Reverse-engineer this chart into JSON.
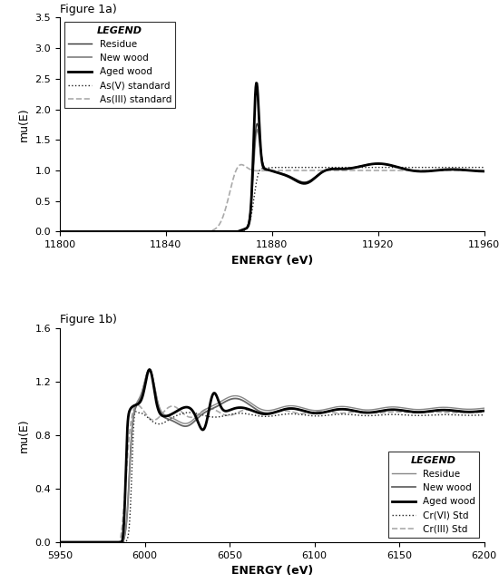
{
  "fig1a": {
    "title": "Figure 1a)",
    "xlabel": "ENERGY (eV)",
    "ylabel": "mu(E)",
    "xlim": [
      11800,
      11960
    ],
    "ylim": [
      0.0,
      3.5
    ],
    "yticks": [
      0.0,
      0.5,
      1.0,
      1.5,
      2.0,
      2.5,
      3.0,
      3.5
    ],
    "xticks": [
      11800,
      11840,
      11880,
      11920,
      11960
    ],
    "legend_title": "LEGEND",
    "legend_entries": [
      "Residue",
      "New wood",
      "Aged wood",
      "As(V) standard",
      "As(III) standard"
    ]
  },
  "fig1b": {
    "title": "Figure 1b)",
    "xlabel": "ENERGY (eV)",
    "ylabel": "mu(E)",
    "xlim": [
      5950,
      6200
    ],
    "ylim": [
      0.0,
      1.6
    ],
    "yticks": [
      0.0,
      0.4,
      0.8,
      1.2,
      1.6
    ],
    "xticks": [
      5950,
      6000,
      6050,
      6100,
      6150,
      6200
    ],
    "legend_title": "LEGEND",
    "legend_entries": [
      "Residue",
      "New wood",
      "Aged wood",
      "Cr(VI) Std",
      "Cr(III) Std"
    ]
  }
}
